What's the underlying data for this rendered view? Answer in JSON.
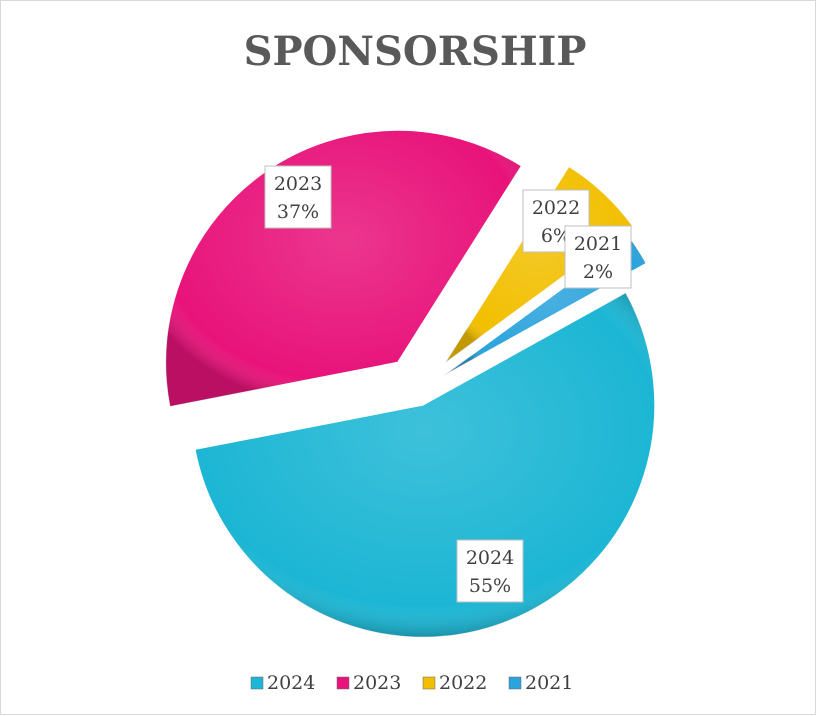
{
  "chart_data": {
    "type": "pie",
    "title": "SPONSORSHIP",
    "categories": [
      "2024",
      "2023",
      "2022",
      "2021"
    ],
    "values": [
      55,
      37,
      6,
      2
    ],
    "value_labels": [
      "55%",
      "37%",
      "6%",
      "2%"
    ],
    "colors": [
      "#1cb6d4",
      "#e8137a",
      "#f2bf00",
      "#2ba3dc"
    ],
    "legend": "bottom"
  }
}
